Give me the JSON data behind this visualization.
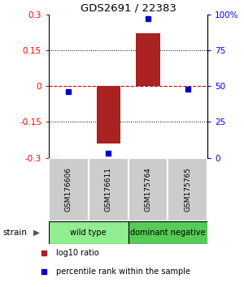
{
  "title": "GDS2691 / 22383",
  "samples": [
    "GSM176606",
    "GSM176611",
    "GSM175764",
    "GSM175765"
  ],
  "log10_ratio": [
    0.0,
    -0.24,
    0.22,
    0.0
  ],
  "percentile_rank": [
    46,
    3,
    97,
    48
  ],
  "groups": [
    {
      "label": "wild type",
      "samples": [
        0,
        1
      ],
      "color": "#90ee90"
    },
    {
      "label": "dominant negative",
      "samples": [
        2,
        3
      ],
      "color": "#55cc55"
    }
  ],
  "group_label": "strain",
  "ylim": [
    -0.3,
    0.3
  ],
  "yticks_left": [
    -0.3,
    -0.15,
    0,
    0.15,
    0.3
  ],
  "bar_color": "#aa2222",
  "dot_color": "#0000cc",
  "dot_size": 4,
  "hline_color": "#cc0000",
  "background_color": "#ffffff",
  "sample_box_color": "#cccccc",
  "legend_items": [
    {
      "color": "#aa2222",
      "label": "log10 ratio"
    },
    {
      "color": "#0000cc",
      "label": "percentile rank within the sample"
    }
  ]
}
